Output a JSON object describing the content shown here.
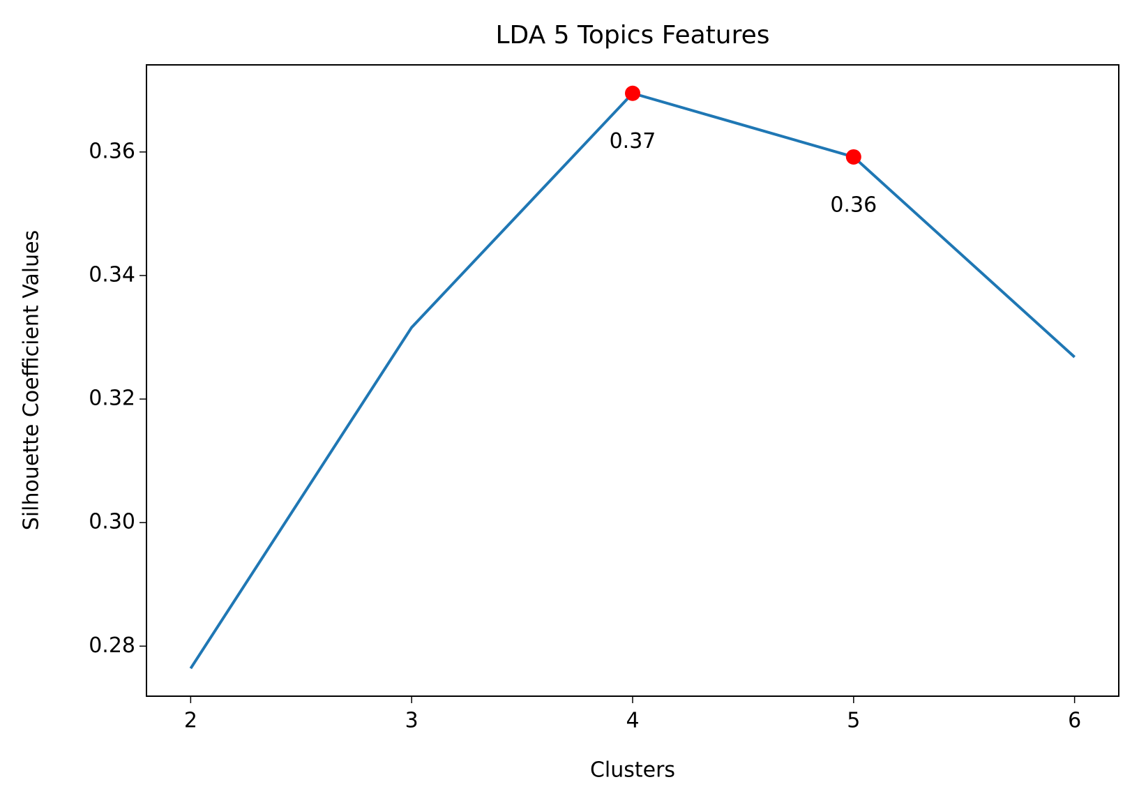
{
  "chart_data": {
    "type": "line",
    "title": "LDA 5 Topics Features",
    "xlabel": "Clusters",
    "ylabel": "Silhouette Coefficient Values",
    "x": [
      2,
      3,
      4,
      5,
      6
    ],
    "series": [
      {
        "color": "#1f77b4",
        "values": [
          0.2764,
          0.3316,
          0.3695,
          0.3592,
          0.3268
        ]
      }
    ],
    "highlights": {
      "x": [
        4,
        5
      ],
      "values": [
        0.3695,
        0.3592
      ],
      "value_labels": [
        "0.37",
        "0.36"
      ],
      "color": "#ff0000"
    },
    "xlim": [
      1.8,
      6.2
    ],
    "xticks": [
      2,
      3,
      4,
      5,
      6
    ],
    "ylim": [
      0.2719,
      0.3741
    ],
    "yticks": [
      {
        "value": 0.28,
        "label": "0.28"
      },
      {
        "value": 0.3,
        "label": "0.30"
      },
      {
        "value": 0.32,
        "label": "0.32"
      },
      {
        "value": 0.34,
        "label": "0.34"
      },
      {
        "value": 0.36,
        "label": "0.36"
      }
    ],
    "grid": false
  }
}
